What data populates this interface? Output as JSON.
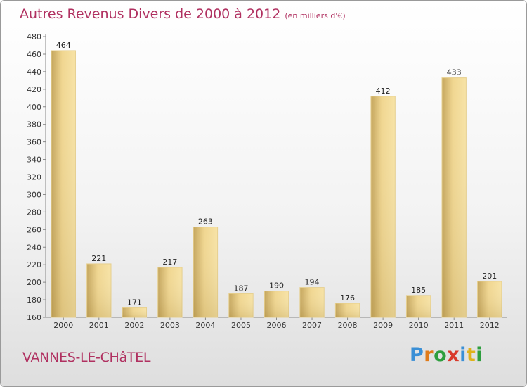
{
  "title": "Autres Revenus Divers de 2000 à 2012",
  "subtitle": "(en milliers d'€)",
  "commune": "VANNES-LE-CHâTEL",
  "logo": {
    "text": "Proxiti",
    "letter_colors": [
      "#3a8fd6",
      "#e07b1a",
      "#2e9e3e",
      "#d93a2b",
      "#3a8fd6",
      "#e0b21a",
      "#2e9e3e"
    ]
  },
  "chart_data": {
    "type": "bar",
    "categories": [
      "2000",
      "2001",
      "2002",
      "2003",
      "2004",
      "2005",
      "2006",
      "2007",
      "2008",
      "2009",
      "2010",
      "2011",
      "2012"
    ],
    "values": [
      464,
      221,
      171,
      217,
      263,
      187,
      190,
      194,
      176,
      412,
      185,
      433,
      201
    ],
    "ylim": [
      160,
      480
    ],
    "yticks": [
      160,
      180,
      200,
      220,
      240,
      260,
      280,
      300,
      320,
      340,
      360,
      380,
      400,
      420,
      440,
      460,
      480
    ],
    "grid": false,
    "bar_color": "#e8c878"
  }
}
